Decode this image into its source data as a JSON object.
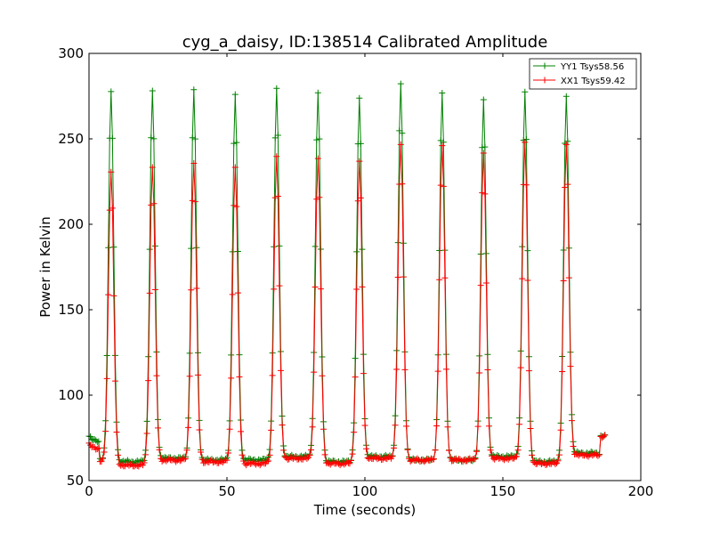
{
  "chart_data": {
    "type": "line",
    "title": "cyg_a_daisy, ID:138514 Calibrated Amplitude",
    "xlabel": "Time (seconds)",
    "ylabel": "Power in Kelvin",
    "xlim": [
      0,
      200
    ],
    "ylim": [
      50,
      300
    ],
    "xticks": [
      "0",
      "50",
      "100",
      "150",
      "200"
    ],
    "yticks": [
      "50",
      "100",
      "150",
      "200",
      "250",
      "300"
    ],
    "legend_position": "top-right",
    "grid": false,
    "peak_times": [
      8.0,
      23.0,
      38.0,
      53.0,
      68.0,
      83.0,
      98.0,
      113.0,
      128.0,
      143.0,
      158.0,
      173.0
    ],
    "series": [
      {
        "name": "YY1 Tsys58.56",
        "color": "#008000",
        "start_level": 76,
        "peak_heights": [
          278,
          278,
          278,
          275,
          279,
          277,
          274,
          282,
          276,
          272,
          277,
          275
        ],
        "baselines": [
          62,
          61,
          63,
          62,
          62,
          64,
          61,
          64,
          62,
          62,
          64,
          61,
          66
        ],
        "end_level": 76
      },
      {
        "name": "XX1 Tsys59.42",
        "color": "#ff0000",
        "start_level": 71,
        "peak_heights": [
          231,
          234,
          236,
          233,
          239,
          238,
          237,
          247,
          246,
          241,
          247,
          246
        ],
        "baselines": [
          61,
          59,
          62,
          61,
          60,
          63,
          60,
          63,
          62,
          62,
          63,
          60,
          65
        ],
        "end_level": 76
      }
    ]
  }
}
